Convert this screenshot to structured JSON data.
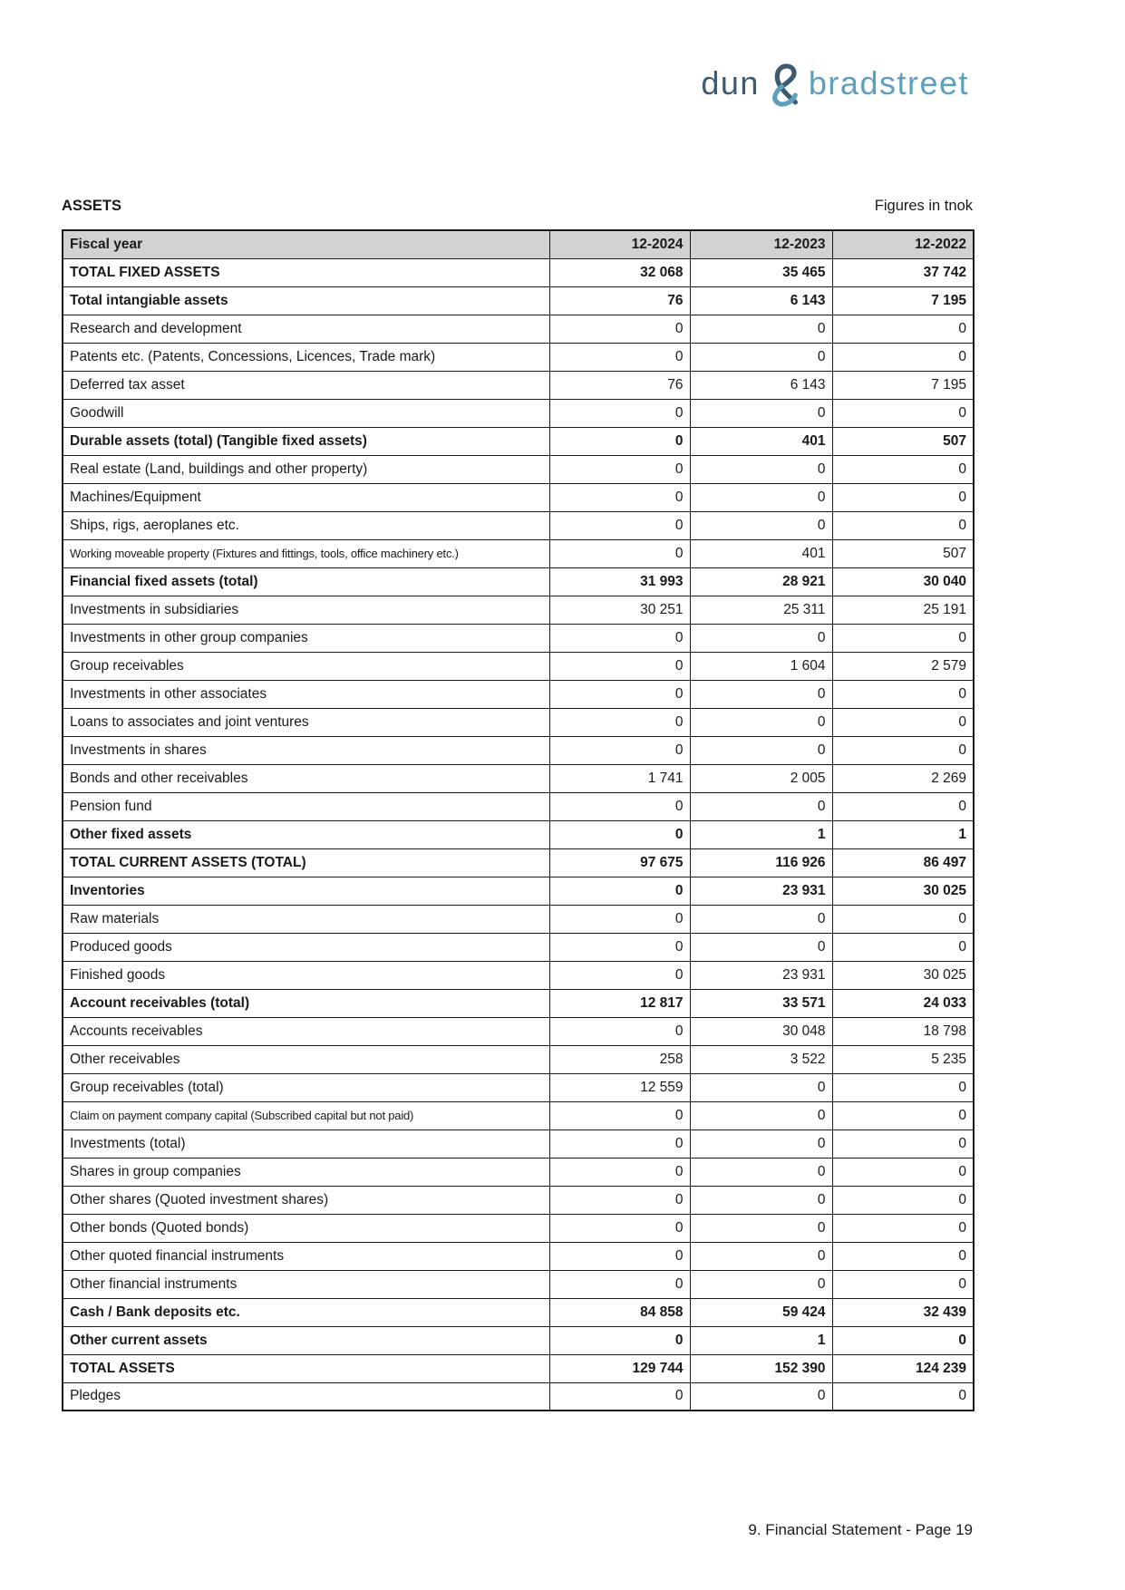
{
  "page": {
    "assets_title": "ASSETS",
    "figures_note": "Figures in tnok",
    "footer_text": "9. Financial Statement - Page 19"
  },
  "logo": {
    "word1": "dun",
    "ampersand": "&",
    "word2": "bradstreet",
    "color_dark": "#3d5a73",
    "color_light": "#5e9fbe"
  },
  "table": {
    "header": {
      "label": "Fiscal year",
      "columns": [
        "12-2024",
        "12-2023",
        "12-2022"
      ]
    },
    "rows": [
      {
        "label": "TOTAL FIXED ASSETS",
        "values": [
          "32 068",
          "35 465",
          "37 742"
        ],
        "bold": true,
        "condensed": false
      },
      {
        "label": "Total intangiable assets",
        "values": [
          "76",
          "6 143",
          "7 195"
        ],
        "bold": true,
        "condensed": false
      },
      {
        "label": "Research and development",
        "values": [
          "0",
          "0",
          "0"
        ],
        "bold": false,
        "condensed": false
      },
      {
        "label": "Patents etc. (Patents, Concessions, Licences, Trade mark)",
        "values": [
          "0",
          "0",
          "0"
        ],
        "bold": false,
        "condensed": false
      },
      {
        "label": "Deferred tax asset",
        "values": [
          "76",
          "6 143",
          "7 195"
        ],
        "bold": false,
        "condensed": false
      },
      {
        "label": "Goodwill",
        "values": [
          "0",
          "0",
          "0"
        ],
        "bold": false,
        "condensed": false
      },
      {
        "label": "Durable assets (total) (Tangible fixed assets)",
        "values": [
          "0",
          "401",
          "507"
        ],
        "bold": true,
        "condensed": false
      },
      {
        "label": "Real estate (Land, buildings and other property)",
        "values": [
          "0",
          "0",
          "0"
        ],
        "bold": false,
        "condensed": false
      },
      {
        "label": "Machines/Equipment",
        "values": [
          "0",
          "0",
          "0"
        ],
        "bold": false,
        "condensed": false
      },
      {
        "label": "Ships, rigs, aeroplanes etc.",
        "values": [
          "0",
          "0",
          "0"
        ],
        "bold": false,
        "condensed": false
      },
      {
        "label": "Working moveable property (Fixtures and fittings, tools, office machinery etc.)",
        "values": [
          "0",
          "401",
          "507"
        ],
        "bold": false,
        "condensed": true
      },
      {
        "label": "Financial fixed assets (total)",
        "values": [
          "31 993",
          "28 921",
          "30 040"
        ],
        "bold": true,
        "condensed": false
      },
      {
        "label": "Investments in subsidiaries",
        "values": [
          "30 251",
          "25 311",
          "25 191"
        ],
        "bold": false,
        "condensed": false
      },
      {
        "label": "Investments in other group companies",
        "values": [
          "0",
          "0",
          "0"
        ],
        "bold": false,
        "condensed": false
      },
      {
        "label": "Group receivables",
        "values": [
          "0",
          "1 604",
          "2 579"
        ],
        "bold": false,
        "condensed": false
      },
      {
        "label": "Investments in other associates",
        "values": [
          "0",
          "0",
          "0"
        ],
        "bold": false,
        "condensed": false
      },
      {
        "label": "Loans to associates and joint ventures",
        "values": [
          "0",
          "0",
          "0"
        ],
        "bold": false,
        "condensed": false
      },
      {
        "label": "Investments in shares",
        "values": [
          "0",
          "0",
          "0"
        ],
        "bold": false,
        "condensed": false
      },
      {
        "label": "Bonds and other receivables",
        "values": [
          "1 741",
          "2 005",
          "2 269"
        ],
        "bold": false,
        "condensed": false
      },
      {
        "label": "Pension fund",
        "values": [
          "0",
          "0",
          "0"
        ],
        "bold": false,
        "condensed": false
      },
      {
        "label": "Other fixed assets",
        "values": [
          "0",
          "1",
          "1"
        ],
        "bold": true,
        "condensed": false
      },
      {
        "label": "TOTAL CURRENT ASSETS (TOTAL)",
        "values": [
          "97 675",
          "116 926",
          "86 497"
        ],
        "bold": true,
        "condensed": false
      },
      {
        "label": "Inventories",
        "values": [
          "0",
          "23 931",
          "30 025"
        ],
        "bold": true,
        "condensed": false
      },
      {
        "label": "Raw materials",
        "values": [
          "0",
          "0",
          "0"
        ],
        "bold": false,
        "condensed": false
      },
      {
        "label": "Produced goods",
        "values": [
          "0",
          "0",
          "0"
        ],
        "bold": false,
        "condensed": false
      },
      {
        "label": "Finished goods",
        "values": [
          "0",
          "23 931",
          "30 025"
        ],
        "bold": false,
        "condensed": false
      },
      {
        "label": "Account receivables (total)",
        "values": [
          "12 817",
          "33 571",
          "24 033"
        ],
        "bold": true,
        "condensed": false
      },
      {
        "label": "Accounts receivables",
        "values": [
          "0",
          "30 048",
          "18 798"
        ],
        "bold": false,
        "condensed": false
      },
      {
        "label": "Other receivables",
        "values": [
          "258",
          "3 522",
          "5 235"
        ],
        "bold": false,
        "condensed": false
      },
      {
        "label": "Group receivables (total)",
        "values": [
          "12 559",
          "0",
          "0"
        ],
        "bold": false,
        "condensed": false
      },
      {
        "label": "Claim on payment company capital (Subscribed capital but not paid)",
        "values": [
          "0",
          "0",
          "0"
        ],
        "bold": false,
        "condensed": true
      },
      {
        "label": "Investments (total)",
        "values": [
          "0",
          "0",
          "0"
        ],
        "bold": false,
        "condensed": false
      },
      {
        "label": "Shares in group companies",
        "values": [
          "0",
          "0",
          "0"
        ],
        "bold": false,
        "condensed": false
      },
      {
        "label": "Other shares (Quoted investment shares)",
        "values": [
          "0",
          "0",
          "0"
        ],
        "bold": false,
        "condensed": false
      },
      {
        "label": "Other bonds (Quoted bonds)",
        "values": [
          "0",
          "0",
          "0"
        ],
        "bold": false,
        "condensed": false
      },
      {
        "label": "Other quoted financial instruments",
        "values": [
          "0",
          "0",
          "0"
        ],
        "bold": false,
        "condensed": false
      },
      {
        "label": "Other financial instruments",
        "values": [
          "0",
          "0",
          "0"
        ],
        "bold": false,
        "condensed": false
      },
      {
        "label": "Cash / Bank deposits etc.",
        "values": [
          "84 858",
          "59 424",
          "32 439"
        ],
        "bold": true,
        "condensed": false
      },
      {
        "label": "Other current assets",
        "values": [
          "0",
          "1",
          "0"
        ],
        "bold": true,
        "condensed": false
      },
      {
        "label": "TOTAL ASSETS",
        "values": [
          "129 744",
          "152 390",
          "124 239"
        ],
        "bold": true,
        "condensed": false
      },
      {
        "label": "Pledges",
        "values": [
          "0",
          "0",
          "0"
        ],
        "bold": false,
        "condensed": false
      }
    ]
  }
}
